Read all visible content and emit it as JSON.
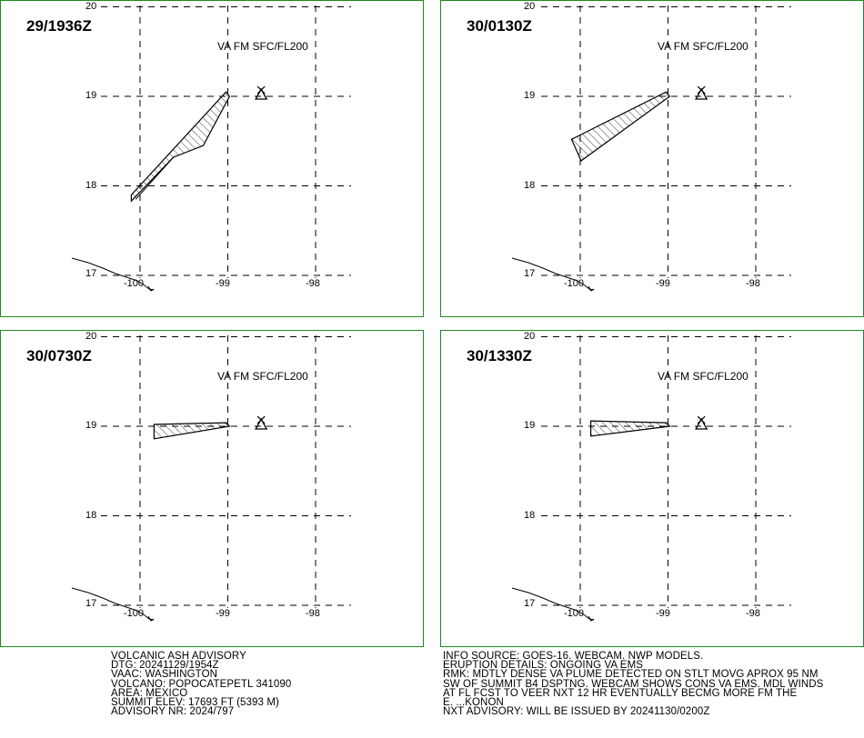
{
  "panels": [
    {
      "time": "29/1936Z",
      "layer": "VA FM SFC/FL200",
      "polygon": [
        [
          -99.02,
          19.05
        ],
        [
          -98.98,
          19.0
        ],
        [
          -99.28,
          18.45
        ],
        [
          -99.62,
          18.32
        ],
        [
          -100.1,
          17.83
        ],
        [
          -100.1,
          17.9
        ]
      ],
      "inner_line": [
        [
          -99.62,
          18.32
        ],
        [
          -100.05,
          17.85
        ]
      ]
    },
    {
      "time": "30/0130Z",
      "layer": "VA FM SFC/FL200",
      "polygon": [
        [
          -99.02,
          19.05
        ],
        [
          -98.98,
          19.0
        ],
        [
          -99.99,
          18.28
        ],
        [
          -100.1,
          18.52
        ]
      ],
      "inner_line": []
    },
    {
      "time": "30/0730Z",
      "layer": "VA FM SFC/FL200",
      "polygon": [
        [
          -99.02,
          19.04
        ],
        [
          -98.98,
          19.0
        ],
        [
          -99.84,
          18.86
        ],
        [
          -99.84,
          19.02
        ]
      ],
      "inner_line": []
    },
    {
      "time": "30/1330Z",
      "layer": "VA FM SFC/FL200",
      "polygon": [
        [
          -99.02,
          19.04
        ],
        [
          -98.98,
          19.0
        ],
        [
          -99.88,
          18.89
        ],
        [
          -99.88,
          19.06
        ]
      ],
      "inner_line": []
    }
  ],
  "axes": {
    "x_ticks": [
      "-100",
      "-99",
      "-98"
    ],
    "y_ticks": [
      "20",
      "19",
      "18",
      "17"
    ]
  },
  "volcano_marker": "volcano-triangle-icon",
  "colors": {
    "frame": "#1f8a1f",
    "lines": "#000000"
  },
  "advisory_left": [
    "VOLCANIC ASH ADVISORY",
    "DTG: 20241129/1954Z",
    "VAAC: WASHINGTON",
    "VOLCANO: POPOCATEPETL 341090",
    "AREA: MEXICO",
    "SUMMIT ELEV: 17693 FT (5393 M)",
    "ADVISORY NR: 2024/797"
  ],
  "advisory_right": [
    "INFO SOURCE: GOES-16. WEBCAM. NWP MODELS.",
    "ERUPTION DETAILS: ONGOING VA EMS",
    "RMK: MDTLY DENSE VA PLUME DETECTED ON STLT MOVG APROX 95 NM",
    "SW OF SUMMIT B4 DSPTNG. WEBCAM SHOWS CONS VA EMS. MDL WINDS",
    "AT FL FCST TO VEER NXT 12 HR EVENTUALLY BECMG MORE FM THE",
    "E. ...KONON",
    "NXT ADVISORY: WILL BE ISSUED BY 20241130/0200Z"
  ]
}
